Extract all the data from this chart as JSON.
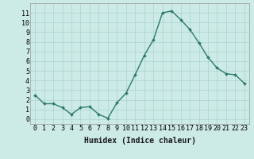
{
  "x": [
    0,
    1,
    2,
    3,
    4,
    5,
    6,
    7,
    8,
    9,
    10,
    11,
    12,
    13,
    14,
    15,
    16,
    17,
    18,
    19,
    20,
    21,
    22,
    23
  ],
  "y": [
    2.5,
    1.6,
    1.6,
    1.2,
    0.5,
    1.2,
    1.3,
    0.5,
    0.1,
    1.7,
    2.7,
    4.6,
    6.6,
    8.2,
    11.0,
    11.2,
    10.3,
    9.3,
    7.9,
    6.4,
    5.3,
    4.7,
    4.6,
    3.7
  ],
  "line_color": "#2d7a6a",
  "marker": "D",
  "marker_size": 2.0,
  "line_width": 1.0,
  "xlabel": "Humidex (Indice chaleur)",
  "xlabel_fontsize": 7,
  "xlim": [
    -0.5,
    23.5
  ],
  "ylim": [
    -0.5,
    12
  ],
  "yticks": [
    0,
    1,
    2,
    3,
    4,
    5,
    6,
    7,
    8,
    9,
    10,
    11
  ],
  "xticks": [
    0,
    1,
    2,
    3,
    4,
    5,
    6,
    7,
    8,
    9,
    10,
    11,
    12,
    13,
    14,
    15,
    16,
    17,
    18,
    19,
    20,
    21,
    22,
    23
  ],
  "bg_color": "#cceae6",
  "grid_color": "#aad4ce",
  "tick_fontsize": 6,
  "xlabel_bold": true
}
